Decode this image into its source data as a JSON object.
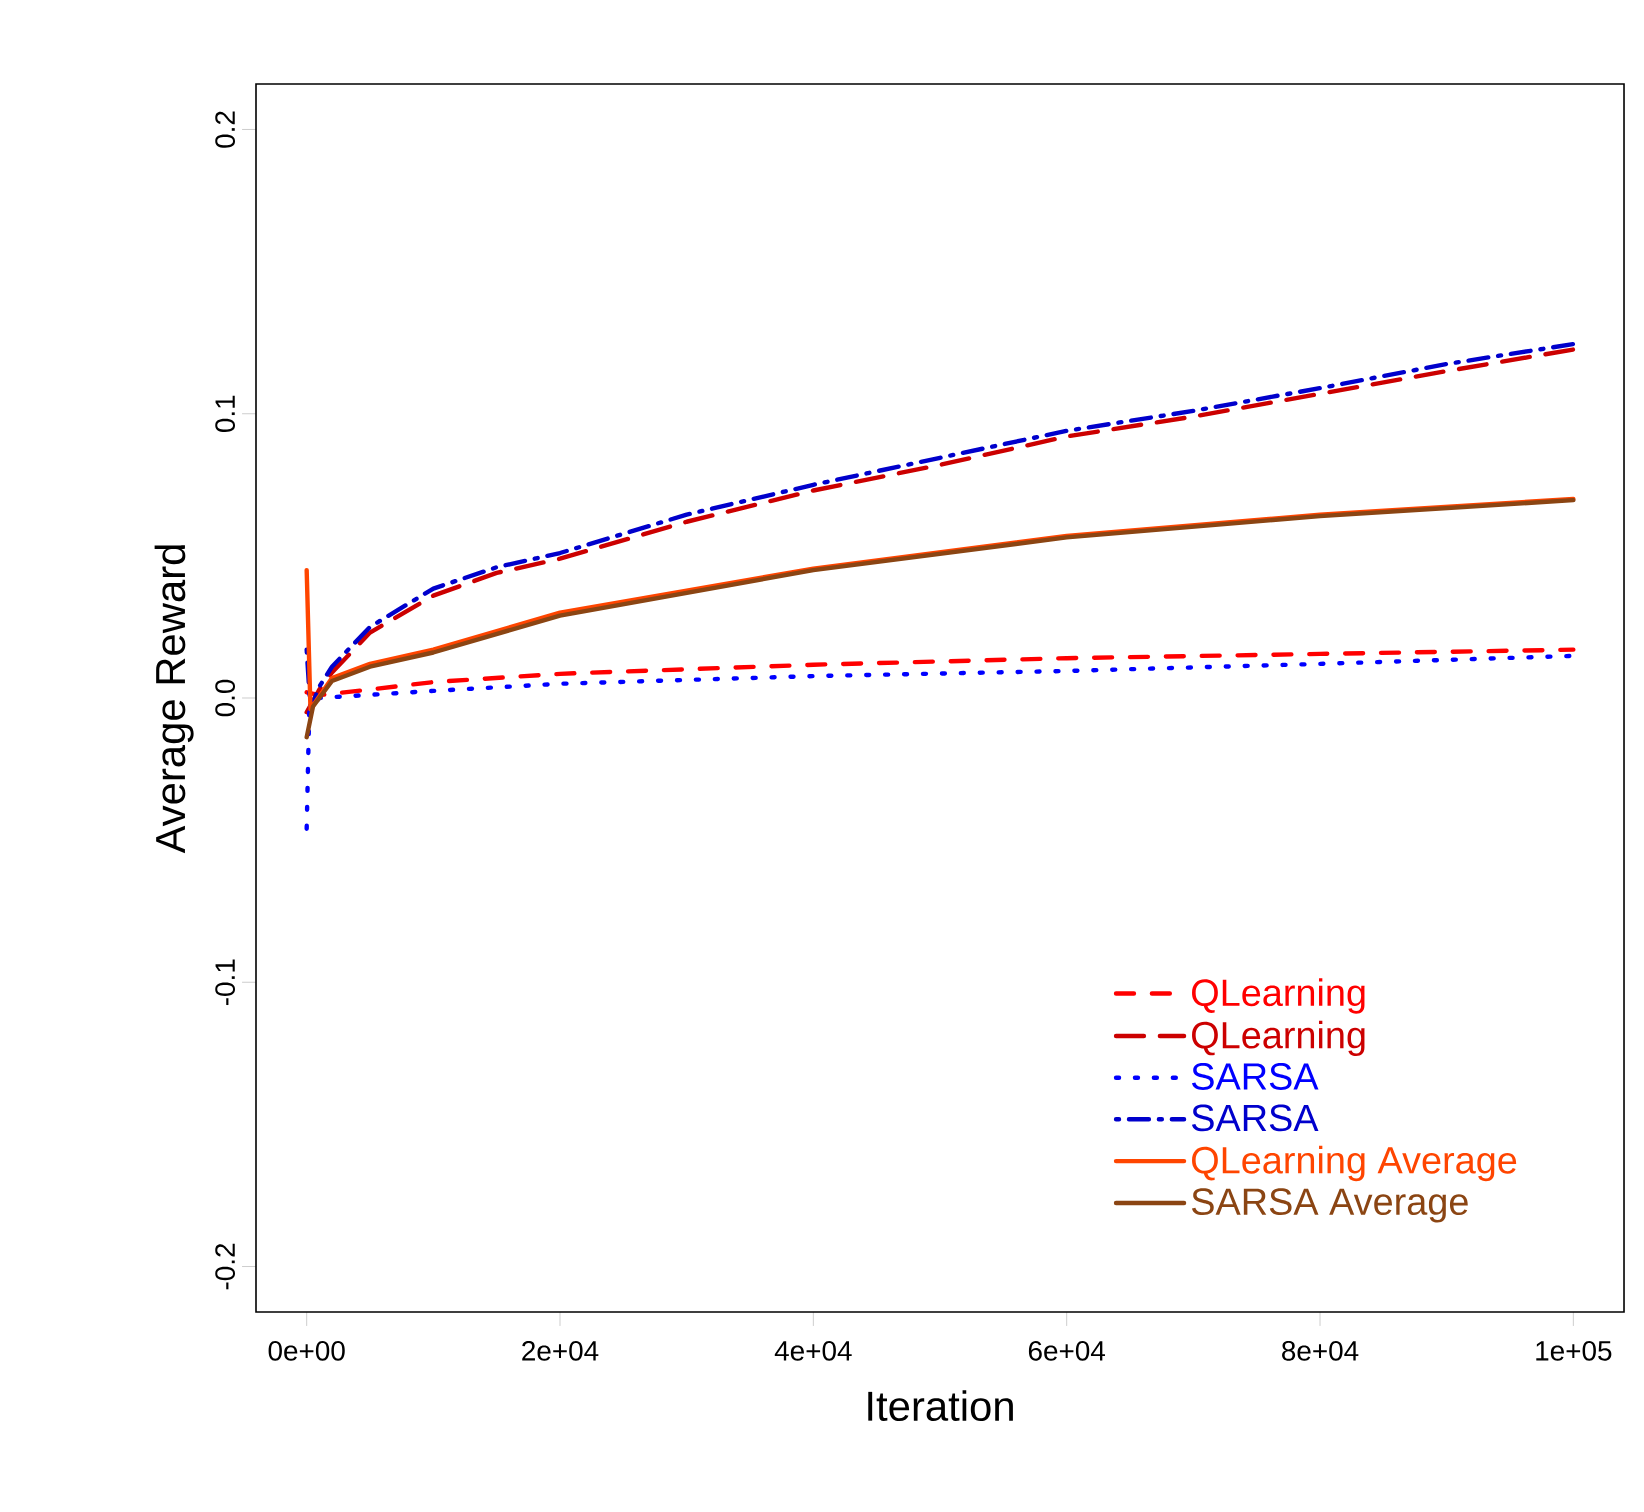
{
  "chart_data": {
    "type": "line",
    "xlabel": "Iteration",
    "ylabel": "Average Reward",
    "xlim": [
      -4000,
      104000
    ],
    "ylim": [
      -0.216,
      0.216
    ],
    "xticks": [
      {
        "value": 0,
        "label": "0e+00"
      },
      {
        "value": 20000,
        "label": "2e+04"
      },
      {
        "value": 40000,
        "label": "4e+04"
      },
      {
        "value": 60000,
        "label": "6e+04"
      },
      {
        "value": 80000,
        "label": "8e+04"
      },
      {
        "value": 100000,
        "label": "1e+05"
      }
    ],
    "yticks": [
      {
        "value": -0.2,
        "label": "-0.2"
      },
      {
        "value": -0.1,
        "label": "-0.1"
      },
      {
        "value": 0,
        "label": "0.0"
      },
      {
        "value": 0.1,
        "label": "0.1"
      },
      {
        "value": 0.2,
        "label": "0.2"
      }
    ],
    "legend": "bottom right",
    "grid": false,
    "marker": "none",
    "series": [
      {
        "name": "QLearning",
        "color": "#ff0000",
        "line_style": "dashed",
        "x": [
          0,
          1000,
          5000,
          10000,
          20000,
          40000,
          60000,
          80000,
          100000
        ],
        "values": [
          0.002,
          0.001,
          0.003,
          0.0056,
          0.0085,
          0.0117,
          0.014,
          0.0155,
          0.017
        ]
      },
      {
        "name": "QLearning",
        "color": "#cc0000",
        "line_style": "longdashed",
        "x": [
          0,
          1000,
          2000,
          5000,
          10000,
          15000,
          20000,
          30000,
          40000,
          50000,
          60000,
          70000,
          80000,
          90000,
          100000
        ],
        "values": [
          -0.005,
          0.003,
          0.009,
          0.023,
          0.036,
          0.044,
          0.049,
          0.062,
          0.073,
          0.082,
          0.092,
          0.099,
          0.107,
          0.115,
          0.1226
        ]
      },
      {
        "name": "SARSA",
        "color": "#0000ff",
        "line_style": "dotted",
        "x": [
          0,
          200,
          1000,
          10000,
          20000,
          40000,
          60000,
          80000,
          100000
        ],
        "values": [
          -0.046,
          -0.005,
          0.0,
          0.0025,
          0.005,
          0.0077,
          0.0095,
          0.012,
          0.0148
        ]
      },
      {
        "name": "SARSA",
        "color": "#0000cc",
        "line_style": "dashdot",
        "x": [
          0,
          300,
          1000,
          2000,
          5000,
          10000,
          15000,
          20000,
          30000,
          40000,
          50000,
          60000,
          70000,
          80000,
          90000,
          100000
        ],
        "values": [
          0.017,
          -0.004,
          0.004,
          0.011,
          0.025,
          0.0385,
          0.046,
          0.051,
          0.0645,
          0.075,
          0.0845,
          0.094,
          0.101,
          0.109,
          0.1175,
          0.1245
        ]
      },
      {
        "name": "QLearning Average",
        "color": "#ff4500",
        "line_style": "solid",
        "x": [
          0,
          300,
          2000,
          5000,
          10000,
          20000,
          40000,
          60000,
          80000,
          100000
        ],
        "values": [
          0.045,
          -0.004,
          0.007,
          0.012,
          0.017,
          0.03,
          0.0455,
          0.057,
          0.0645,
          0.07
        ]
      },
      {
        "name": "SARSA Average",
        "color": "#8b4513",
        "line_style": "solid",
        "x": [
          0,
          500,
          2000,
          5000,
          10000,
          20000,
          40000,
          60000,
          80000,
          100000
        ],
        "values": [
          -0.0138,
          -0.003,
          0.006,
          0.011,
          0.016,
          0.029,
          0.045,
          0.0565,
          0.064,
          0.0696
        ]
      }
    ]
  }
}
